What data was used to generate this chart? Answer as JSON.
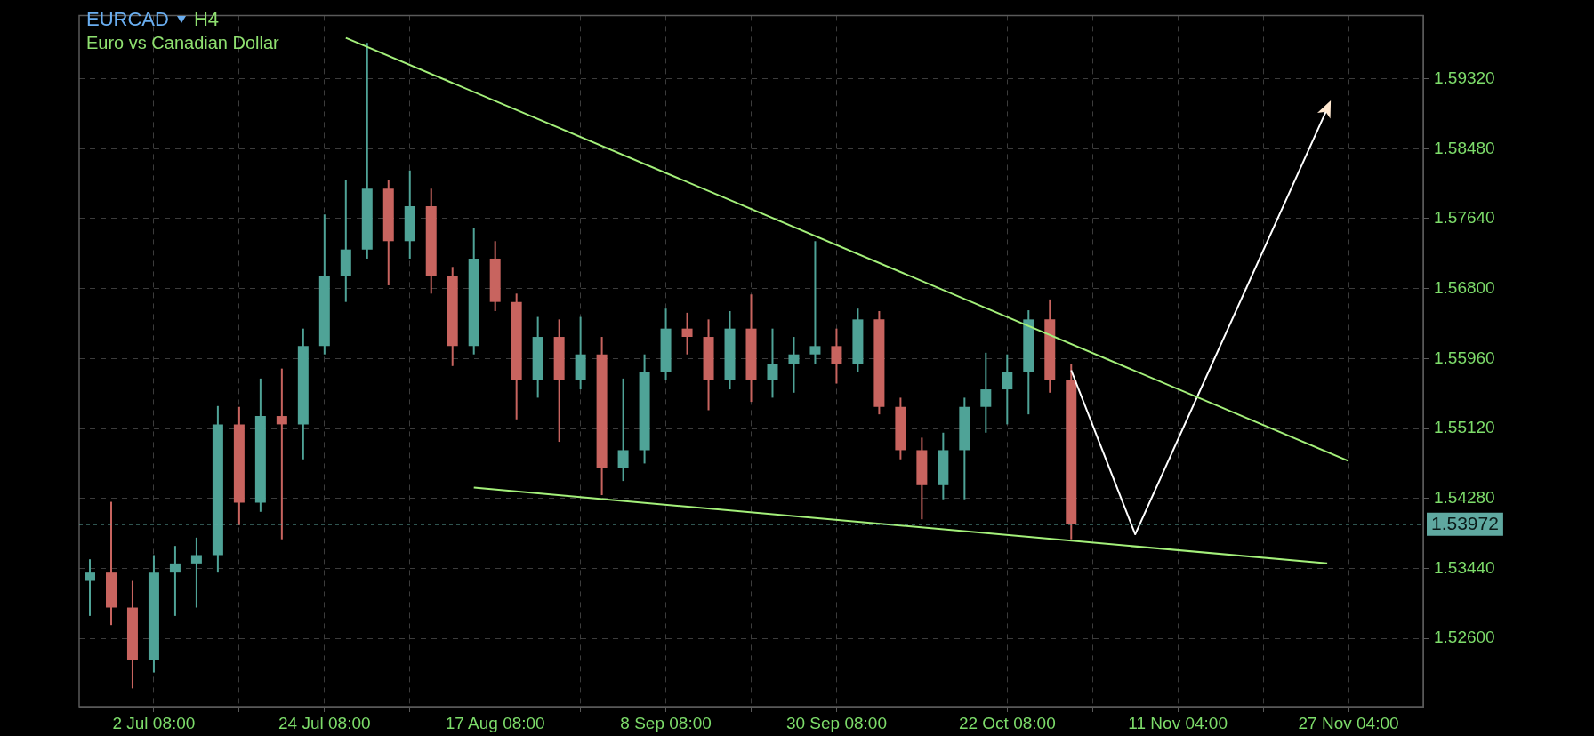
{
  "chart_data": {
    "type": "candlestick",
    "title": "EURCAD",
    "subtitle": "Euro vs Canadian Dollar",
    "annotations": [
      "H4"
    ],
    "categories": [
      null,
      null,
      null,
      "2 Jul 08:00",
      null,
      null,
      null,
      null,
      null,
      null,
      null,
      "24 Jul 08:00",
      null,
      null,
      null,
      null,
      null,
      null,
      null,
      "17 Aug 08:00",
      null,
      null,
      null,
      null,
      null,
      null,
      null,
      "8 Sep 08:00",
      null,
      null,
      null,
      null,
      null,
      null,
      null,
      "30 Sep 08:00",
      null,
      null,
      null,
      null,
      null,
      null,
      null,
      "22 Oct 08:00",
      null,
      null,
      null,
      null,
      null,
      null,
      null,
      "11 Nov 04:00",
      null,
      null,
      null,
      null,
      null,
      null,
      null,
      "27 Nov 04:00",
      null,
      null,
      null
    ],
    "ylim": [
      1.5178,
      1.6008
    ],
    "yticks": [
      {
        "value": 1.526,
        "label": "1.52600"
      },
      {
        "value": 1.5344,
        "label": "1.53440"
      },
      {
        "value": 1.5428,
        "label": "1.54280"
      },
      {
        "value": 1.5512,
        "label": "1.55120"
      },
      {
        "value": 1.5596,
        "label": "1.55960"
      },
      {
        "value": 1.568,
        "label": "1.56800"
      },
      {
        "value": 1.5764,
        "label": "1.57640"
      },
      {
        "value": 1.5848,
        "label": "1.58480"
      },
      {
        "value": 1.5932,
        "label": "1.59320"
      }
    ],
    "grid": true,
    "legend": false,
    "series": [
      {
        "ohlc": [
          [
            1.5329,
            1.5355,
            1.5287,
            1.5339
          ],
          [
            1.5339,
            1.5424,
            1.5276,
            1.5297
          ],
          [
            1.5297,
            1.5329,
            1.52,
            1.5234
          ],
          [
            1.5234,
            1.536,
            1.5219,
            1.5339
          ],
          [
            1.5339,
            1.5371,
            1.5287,
            1.535
          ],
          [
            1.535,
            1.5381,
            1.5297,
            1.536
          ],
          [
            1.536,
            1.5539,
            1.5339,
            1.5517
          ],
          [
            1.5517,
            1.5538,
            1.5396,
            1.5423
          ],
          [
            1.5423,
            1.5572,
            1.5412,
            1.5527
          ],
          [
            1.5527,
            1.5584,
            1.5379,
            1.5517
          ],
          [
            1.5517,
            1.5632,
            1.5475,
            1.5611
          ],
          [
            1.5611,
            1.5769,
            1.5601,
            1.5695
          ],
          [
            1.5695,
            1.581,
            1.5664,
            1.5727
          ],
          [
            1.5727,
            1.5975,
            1.5716,
            1.58
          ],
          [
            1.58,
            1.581,
            1.5684,
            1.5737
          ],
          [
            1.5737,
            1.5822,
            1.5716,
            1.5779
          ],
          [
            1.5779,
            1.58,
            1.5674,
            1.5695
          ],
          [
            1.5695,
            1.5706,
            1.5587,
            1.5611
          ],
          [
            1.5611,
            1.5753,
            1.5601,
            1.5716
          ],
          [
            1.5716,
            1.5737,
            1.5653,
            1.5664
          ],
          [
            1.5664,
            1.5674,
            1.5523,
            1.557
          ],
          [
            1.557,
            1.5646,
            1.5549,
            1.5622
          ],
          [
            1.5622,
            1.5643,
            1.5496,
            1.557
          ],
          [
            1.557,
            1.5646,
            1.5559,
            1.5601
          ],
          [
            1.5601,
            1.5622,
            1.5432,
            1.5465
          ],
          [
            1.5465,
            1.5572,
            1.5449,
            1.5486
          ],
          [
            1.5486,
            1.5601,
            1.547,
            1.558
          ],
          [
            1.558,
            1.5656,
            1.557,
            1.5632
          ],
          [
            1.5632,
            1.5651,
            1.5601,
            1.5622
          ],
          [
            1.5622,
            1.5643,
            1.5534,
            1.557
          ],
          [
            1.557,
            1.5653,
            1.5559,
            1.5632
          ],
          [
            1.5632,
            1.5673,
            1.5544,
            1.557
          ],
          [
            1.557,
            1.5632,
            1.5549,
            1.559
          ],
          [
            1.559,
            1.5622,
            1.5555,
            1.5601
          ],
          [
            1.5601,
            1.5737,
            1.559,
            1.5611
          ],
          [
            1.5611,
            1.5632,
            1.5566,
            1.559
          ],
          [
            1.559,
            1.5656,
            1.558,
            1.5643
          ],
          [
            1.5643,
            1.5653,
            1.5529,
            1.5538
          ],
          [
            1.5538,
            1.5549,
            1.5475,
            1.5486
          ],
          [
            1.5486,
            1.5501,
            1.5403,
            1.5444
          ],
          [
            1.5444,
            1.5507,
            1.5427,
            1.5486
          ],
          [
            1.5486,
            1.5549,
            1.5427,
            1.5538
          ],
          [
            1.5538,
            1.5603,
            1.5507,
            1.5559
          ],
          [
            1.5559,
            1.5601,
            1.5517,
            1.558
          ],
          [
            1.558,
            1.5654,
            1.5529,
            1.5643
          ],
          [
            1.5643,
            1.5667,
            1.5555,
            1.557
          ],
          [
            1.557,
            1.559,
            1.5379,
            1.53972
          ],
          null,
          null,
          null,
          null,
          null,
          null,
          null,
          null,
          null,
          null,
          null,
          null,
          null,
          null,
          null,
          null
        ],
        "colors": [
          "#4fa397",
          "#c8645f",
          "#c8645f",
          "#4fa397",
          "#4fa397",
          "#4fa397",
          "#4fa397",
          "#c8645f",
          "#4fa397",
          "#c8645f",
          "#4fa397",
          "#4fa397",
          "#4fa397",
          "#4fa397",
          "#c8645f",
          "#4fa397",
          "#c8645f",
          "#c8645f",
          "#4fa397",
          "#c8645f",
          "#c8645f",
          "#4fa397",
          "#c8645f",
          "#4fa397",
          "#c8645f",
          "#4fa397",
          "#4fa397",
          "#4fa397",
          "#c8645f",
          "#c8645f",
          "#4fa397",
          "#c8645f",
          "#4fa397",
          "#4fa397",
          "#4fa397",
          "#c8645f",
          "#4fa397",
          "#c8645f",
          "#c8645f",
          "#c8645f",
          "#4fa397",
          "#4fa397",
          "#4fa397",
          "#4fa397",
          "#4fa397",
          "#c8645f",
          "#c8645f",
          null,
          null,
          null,
          null,
          null,
          null,
          null,
          null,
          null,
          null,
          null,
          null,
          null,
          null,
          null,
          null
        ]
      },
      {
        "type": "line",
        "color": "#a4f07a",
        "values": [
          null,
          null,
          null,
          null,
          null,
          null,
          null,
          null,
          null,
          null,
          null,
          null,
          1.5981,
          null,
          null,
          null,
          null,
          null,
          null,
          null,
          null,
          null,
          null,
          null,
          null,
          null,
          null,
          null,
          null,
          null,
          null,
          null,
          null,
          null,
          null,
          null,
          null,
          null,
          null,
          null,
          null,
          null,
          null,
          null,
          null,
          null,
          null,
          null,
          null,
          null,
          null,
          null,
          null,
          null,
          null,
          null,
          null,
          null,
          null,
          1.5473,
          null,
          null,
          null
        ]
      },
      {
        "type": "line",
        "color": "#a4f07a",
        "values": [
          null,
          null,
          null,
          null,
          null,
          null,
          null,
          null,
          null,
          null,
          null,
          null,
          null,
          null,
          null,
          null,
          null,
          null,
          1.5441,
          null,
          null,
          null,
          null,
          null,
          null,
          null,
          null,
          null,
          null,
          null,
          null,
          null,
          null,
          null,
          null,
          null,
          null,
          null,
          null,
          null,
          null,
          null,
          null,
          null,
          null,
          null,
          null,
          null,
          null,
          null,
          null,
          null,
          null,
          null,
          null,
          null,
          null,
          null,
          1.535,
          null,
          null,
          null,
          null
        ]
      },
      {
        "type": "line",
        "color": "#ffffff",
        "values": [
          null,
          null,
          null,
          null,
          null,
          null,
          null,
          null,
          null,
          null,
          null,
          null,
          null,
          null,
          null,
          null,
          null,
          null,
          null,
          null,
          null,
          null,
          null,
          null,
          null,
          null,
          null,
          null,
          null,
          null,
          null,
          null,
          null,
          null,
          null,
          null,
          null,
          null,
          null,
          null,
          null,
          null,
          null,
          null,
          null,
          null,
          1.5582,
          null,
          null,
          1.5385,
          null,
          null,
          null,
          null,
          null,
          null,
          null,
          null,
          1.5896,
          null,
          null,
          null,
          null
        ]
      }
    ],
    "ref_lines": [
      {
        "axis": "y",
        "value": 1.53972,
        "label": "1.53972",
        "color": "#5fa8a0",
        "line_style": "dashed"
      }
    ]
  }
}
